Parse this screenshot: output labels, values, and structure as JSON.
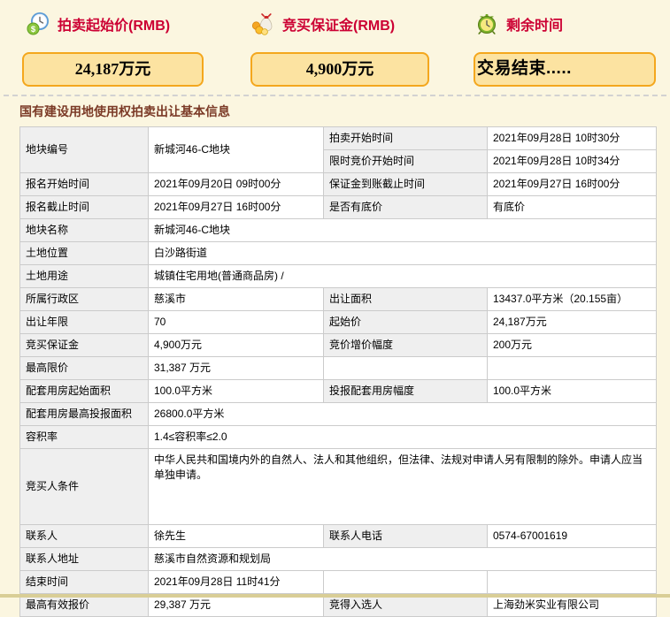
{
  "header": {
    "items": [
      {
        "icon": "money-clock-icon",
        "label": "拍卖起始价(RMB)",
        "value": "24,187万元"
      },
      {
        "icon": "deposit-bags-icon",
        "label": "竞买保证金(RMB)",
        "value": "4,900万元"
      },
      {
        "icon": "alarm-clock-icon",
        "label": "剩余时间",
        "value": "交易结束....."
      }
    ]
  },
  "section_title": "国有建设用地使用权拍卖出让基本信息",
  "colors": {
    "accent_red": "#CC0033",
    "box_fill": "#FCE3A1",
    "box_border": "#F4A71D",
    "title_brown": "#7B3A26",
    "label_cell_bg": "#EFEFEF"
  },
  "table": {
    "rows": [
      {
        "cells": [
          {
            "text": "地块编号",
            "kind": "label",
            "rowspan": 2
          },
          {
            "text": "新城河46-C地块",
            "kind": "value",
            "rowspan": 2
          },
          {
            "text": "拍卖开始时间",
            "kind": "label"
          },
          {
            "text": "2021年09月28日 10时30分",
            "kind": "value"
          }
        ]
      },
      {
        "cells": [
          {
            "text": "限时竞价开始时间",
            "kind": "label"
          },
          {
            "text": "2021年09月28日 10时34分",
            "kind": "value"
          }
        ]
      },
      {
        "cells": [
          {
            "text": "报名开始时间",
            "kind": "label"
          },
          {
            "text": "2021年09月20日 09时00分",
            "kind": "value"
          },
          {
            "text": "保证金到账截止时间",
            "kind": "label"
          },
          {
            "text": "2021年09月27日 16时00分",
            "kind": "value"
          }
        ]
      },
      {
        "cells": [
          {
            "text": "报名截止时间",
            "kind": "label"
          },
          {
            "text": "2021年09月27日 16时00分",
            "kind": "value"
          },
          {
            "text": "是否有底价",
            "kind": "label"
          },
          {
            "text": "有底价",
            "kind": "value"
          }
        ]
      },
      {
        "cells": [
          {
            "text": "地块名称",
            "kind": "label"
          },
          {
            "text": "新城河46-C地块",
            "kind": "value",
            "colspan": 3
          }
        ]
      },
      {
        "cells": [
          {
            "text": "土地位置",
            "kind": "label"
          },
          {
            "text": "白沙路街道",
            "kind": "value",
            "colspan": 3
          }
        ]
      },
      {
        "cells": [
          {
            "text": "土地用途",
            "kind": "label"
          },
          {
            "text": "城镇住宅用地(普通商品房) /",
            "kind": "value",
            "colspan": 3
          }
        ]
      },
      {
        "cells": [
          {
            "text": "所属行政区",
            "kind": "label"
          },
          {
            "text": "慈溪市",
            "kind": "value"
          },
          {
            "text": "出让面积",
            "kind": "label"
          },
          {
            "text": "13437.0平方米（20.155亩）",
            "kind": "value"
          }
        ]
      },
      {
        "cells": [
          {
            "text": "出让年限",
            "kind": "label"
          },
          {
            "text": "70",
            "kind": "value"
          },
          {
            "text": "起始价",
            "kind": "label"
          },
          {
            "text": "24,187万元",
            "kind": "value"
          }
        ]
      },
      {
        "cells": [
          {
            "text": "竞买保证金",
            "kind": "label"
          },
          {
            "text": "4,900万元",
            "kind": "value"
          },
          {
            "text": "竞价增价幅度",
            "kind": "label"
          },
          {
            "text": "200万元",
            "kind": "value"
          }
        ]
      },
      {
        "cells": [
          {
            "text": "最高限价",
            "kind": "label"
          },
          {
            "text": "31,387 万元",
            "kind": "value"
          },
          {
            "text": "",
            "kind": "value"
          },
          {
            "text": "",
            "kind": "value"
          }
        ]
      },
      {
        "cells": [
          {
            "text": "配套用房起始面积",
            "kind": "label"
          },
          {
            "text": "100.0平方米",
            "kind": "value"
          },
          {
            "text": "投报配套用房幅度",
            "kind": "label"
          },
          {
            "text": "100.0平方米",
            "kind": "value"
          }
        ]
      },
      {
        "cells": [
          {
            "text": "配套用房最高投报面积",
            "kind": "label"
          },
          {
            "text": "26800.0平方米",
            "kind": "value",
            "colspan": 3
          }
        ]
      },
      {
        "cells": [
          {
            "text": "容积率",
            "kind": "label"
          },
          {
            "text": "1.4≤容积率≤2.0",
            "kind": "value",
            "colspan": 3
          }
        ]
      },
      {
        "cells": [
          {
            "text": "竞买人条件",
            "kind": "label"
          },
          {
            "text": "中华人民共和国境内外的自然人、法人和其他组织，但法律、法规对申请人另有限制的除外。申请人应当单独申请。",
            "kind": "value",
            "colspan": 3
          }
        ]
      },
      {
        "cells": [
          {
            "text": "联系人",
            "kind": "label"
          },
          {
            "text": "徐先生",
            "kind": "value"
          },
          {
            "text": "联系人电话",
            "kind": "label"
          },
          {
            "text": "0574-67001619",
            "kind": "value"
          }
        ]
      },
      {
        "cells": [
          {
            "text": "联系人地址",
            "kind": "label"
          },
          {
            "text": "慈溪市自然资源和规划局",
            "kind": "value",
            "colspan": 3
          }
        ]
      },
      {
        "cells": [
          {
            "text": "结束时间",
            "kind": "label"
          },
          {
            "text": "2021年09月28日 11时41分",
            "kind": "value"
          },
          {
            "text": "",
            "kind": "value"
          },
          {
            "text": "",
            "kind": "value"
          }
        ]
      },
      {
        "cells": [
          {
            "text": "最高有效报价",
            "kind": "label"
          },
          {
            "text": "29,387 万元",
            "kind": "value"
          },
          {
            "text": "竞得入选人",
            "kind": "label"
          },
          {
            "text": "上海劲米实业有限公司",
            "kind": "value"
          }
        ]
      }
    ]
  }
}
